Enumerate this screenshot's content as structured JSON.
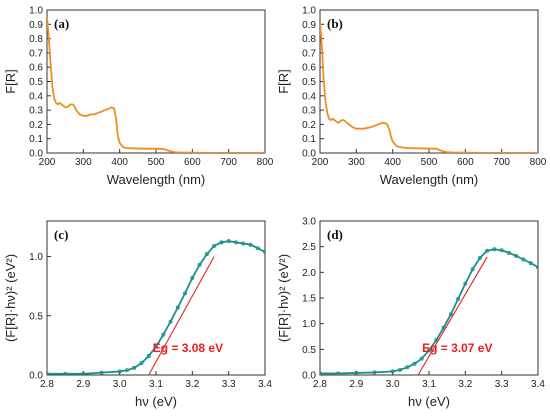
{
  "chart_data": [
    {
      "panel": "(a)",
      "type": "line",
      "xlabel": "Wavelength (nm)",
      "ylabel": "F[R]",
      "xlim": [
        200,
        800
      ],
      "ylim": [
        0.0,
        1.0
      ],
      "xticks": [
        200,
        300,
        400,
        500,
        600,
        700,
        800
      ],
      "yticks": [
        0.0,
        0.1,
        0.2,
        0.3,
        0.4,
        0.5,
        0.6,
        0.7,
        0.8,
        0.9,
        1.0
      ],
      "series": [
        {
          "color": "#f28c1f",
          "x": [
            200,
            205,
            210,
            215,
            220,
            225,
            230,
            235,
            240,
            245,
            250,
            255,
            260,
            265,
            270,
            275,
            280,
            290,
            300,
            310,
            320,
            330,
            340,
            350,
            360,
            370,
            378,
            385,
            390,
            395,
            400,
            410,
            420,
            440,
            460,
            480,
            500,
            520,
            530,
            540,
            550,
            560,
            580,
            600,
            650,
            700,
            750,
            800
          ],
          "y": [
            0.95,
            0.8,
            0.62,
            0.46,
            0.38,
            0.35,
            0.34,
            0.35,
            0.34,
            0.33,
            0.32,
            0.32,
            0.33,
            0.34,
            0.34,
            0.33,
            0.3,
            0.27,
            0.26,
            0.26,
            0.27,
            0.27,
            0.28,
            0.29,
            0.3,
            0.31,
            0.32,
            0.31,
            0.24,
            0.12,
            0.07,
            0.04,
            0.035,
            0.032,
            0.03,
            0.03,
            0.03,
            0.028,
            0.02,
            0.012,
            0.006,
            0.004,
            0.003,
            0.002,
            0.001,
            0.001,
            0.001,
            0.001
          ]
        }
      ]
    },
    {
      "panel": "(b)",
      "type": "line",
      "xlabel": "Wavelength (nm)",
      "ylabel": "F[R]",
      "xlim": [
        200,
        800
      ],
      "ylim": [
        0.0,
        1.0
      ],
      "xticks": [
        200,
        300,
        400,
        500,
        600,
        700,
        800
      ],
      "yticks": [
        0.0,
        0.1,
        0.2,
        0.3,
        0.4,
        0.5,
        0.6,
        0.7,
        0.8,
        0.9,
        1.0
      ],
      "series": [
        {
          "color": "#f28c1f",
          "x": [
            200,
            205,
            210,
            215,
            220,
            225,
            230,
            235,
            240,
            245,
            250,
            255,
            260,
            265,
            270,
            280,
            290,
            300,
            320,
            340,
            350,
            360,
            370,
            378,
            385,
            390,
            395,
            400,
            410,
            420,
            440,
            460,
            480,
            500,
            520,
            530,
            540,
            550,
            560,
            580,
            600,
            650,
            700,
            750,
            800
          ],
          "y": [
            0.92,
            0.75,
            0.52,
            0.36,
            0.28,
            0.24,
            0.23,
            0.24,
            0.23,
            0.22,
            0.21,
            0.22,
            0.23,
            0.23,
            0.22,
            0.2,
            0.18,
            0.17,
            0.17,
            0.18,
            0.19,
            0.2,
            0.21,
            0.21,
            0.2,
            0.17,
            0.12,
            0.08,
            0.05,
            0.04,
            0.035,
            0.033,
            0.032,
            0.031,
            0.03,
            0.02,
            0.01,
            0.006,
            0.004,
            0.003,
            0.002,
            0.001,
            0.001,
            0.001,
            0.001
          ]
        }
      ]
    },
    {
      "panel": "(c)",
      "type": "line",
      "xlabel": "hν (eV)",
      "ylabel": "(F[R]·hν)² (eV²)",
      "xlim": [
        2.8,
        3.4
      ],
      "ylim": [
        0.0,
        1.3
      ],
      "xticks": [
        2.8,
        2.9,
        3.0,
        3.1,
        3.2,
        3.3,
        3.4
      ],
      "yticks": [
        0.0,
        0.5,
        1.0
      ],
      "annotation": "Eg = 3.08 eV",
      "annotation_color": "#e8211e",
      "tangent": {
        "x": [
          3.08,
          3.26
        ],
        "y": [
          0.0,
          1.0
        ]
      },
      "series": [
        {
          "color": "#1a8f8c",
          "x": [
            2.8,
            2.85,
            2.9,
            2.95,
            3.0,
            3.02,
            3.04,
            3.06,
            3.08,
            3.1,
            3.12,
            3.14,
            3.16,
            3.18,
            3.2,
            3.22,
            3.24,
            3.26,
            3.28,
            3.3,
            3.32,
            3.34,
            3.36,
            3.38,
            3.4
          ],
          "y": [
            0.01,
            0.01,
            0.01,
            0.02,
            0.03,
            0.04,
            0.06,
            0.1,
            0.16,
            0.24,
            0.34,
            0.45,
            0.57,
            0.69,
            0.82,
            0.93,
            1.02,
            1.09,
            1.12,
            1.13,
            1.12,
            1.11,
            1.1,
            1.07,
            1.04
          ]
        }
      ]
    },
    {
      "panel": "(d)",
      "type": "line",
      "xlabel": "hν (eV)",
      "ylabel": "(F[R]·hν)² (eV²)",
      "xlim": [
        2.8,
        3.4
      ],
      "ylim": [
        0.0,
        3.0
      ],
      "xticks": [
        2.8,
        2.9,
        3.0,
        3.1,
        3.2,
        3.3,
        3.4
      ],
      "yticks": [
        0.0,
        0.5,
        1.0,
        1.5,
        2.0,
        2.5,
        3.0
      ],
      "annotation": "Eg = 3.07 eV",
      "annotation_color": "#e8211e",
      "tangent": {
        "x": [
          3.07,
          3.26
        ],
        "y": [
          0.0,
          2.3
        ]
      },
      "series": [
        {
          "color": "#1a8f8c",
          "x": [
            2.8,
            2.85,
            2.9,
            2.95,
            3.0,
            3.02,
            3.04,
            3.06,
            3.08,
            3.1,
            3.12,
            3.14,
            3.16,
            3.18,
            3.2,
            3.22,
            3.24,
            3.26,
            3.28,
            3.3,
            3.32,
            3.34,
            3.36,
            3.38,
            3.4
          ],
          "y": [
            0.03,
            0.03,
            0.04,
            0.05,
            0.07,
            0.1,
            0.15,
            0.22,
            0.32,
            0.48,
            0.68,
            0.92,
            1.18,
            1.48,
            1.78,
            2.06,
            2.28,
            2.42,
            2.45,
            2.43,
            2.38,
            2.32,
            2.25,
            2.18,
            2.1
          ]
        }
      ]
    }
  ]
}
